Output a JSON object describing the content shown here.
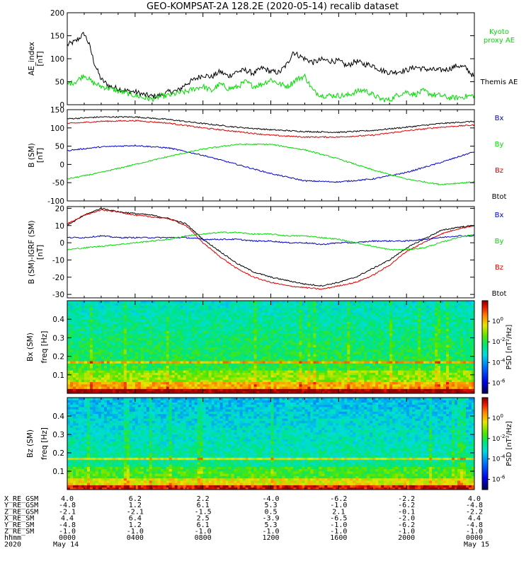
{
  "title": "GEO-KOMPSAT-2A 128.2E (2020-05-14) recalib dataset",
  "x_axis": {
    "range_hours": [
      0,
      24
    ],
    "major_tick_hours": [
      0,
      4,
      8,
      12,
      16,
      20,
      24
    ],
    "tick_labels": [
      "0000",
      "0400",
      "0800",
      "1200",
      "1600",
      "2000",
      "0000"
    ]
  },
  "ephemeris": {
    "rows": [
      {
        "label": "X_RE_GSM",
        "values": [
          "4.0",
          "6.2",
          "2.2",
          "-4.0",
          "-6.2",
          "-2.2",
          "4.0"
        ]
      },
      {
        "label": "Y_RE_GSM",
        "values": [
          "-4.8",
          "1.2",
          "6.1",
          "5.3",
          "-1.0",
          "-6.2",
          "-4.8"
        ]
      },
      {
        "label": "Z_RE_GSM",
        "values": [
          "-2.1",
          "-2.1",
          "-1.5",
          "0.5",
          "2.1",
          "-0.1",
          "-2.2"
        ]
      },
      {
        "label": "X_RE_SM",
        "values": [
          "4.4",
          "6.4",
          "2.5",
          "-3.9",
          "-6.5",
          "-2.0",
          "4.4"
        ]
      },
      {
        "label": "Y_RE_SM",
        "values": [
          "-4.8",
          "1.2",
          "6.1",
          "5.3",
          "-1.0",
          "-6.2",
          "-4.8"
        ]
      },
      {
        "label": "Z_RE_SM",
        "values": [
          "-1.0",
          "-1.0",
          "-1.0",
          "-1.0",
          "-1.0",
          "-1.0",
          "-1.0"
        ]
      },
      {
        "label": "hhmm",
        "values": [
          "0000",
          "0400",
          "0800",
          "1200",
          "1600",
          "2000",
          "0000"
        ]
      }
    ],
    "year_label": "2020",
    "date_start": "May 14",
    "date_end": "May 15"
  },
  "colors": {
    "black": "#000000",
    "red": "#dd0000",
    "green": "#00dd00",
    "blue": "#0000cc"
  },
  "chart_data": [
    {
      "type": "line",
      "ylabel": "AE_index",
      "yunit": "[nT]",
      "ylim": [
        0,
        200
      ],
      "yticks": [
        0,
        50,
        100,
        150,
        200
      ],
      "series": [
        {
          "name": "Themis AE",
          "color": "#000000",
          "x": [
            0,
            0.5,
            1.0,
            1.3,
            1.6,
            2.0,
            2.5,
            3.0,
            3.5,
            4.0,
            4.5,
            5.0,
            5.5,
            6.0,
            6.5,
            7.0,
            7.5,
            8.0,
            8.5,
            9.0,
            9.5,
            10.0,
            10.5,
            11.0,
            11.5,
            12.0,
            12.5,
            13.0,
            13.3,
            13.6,
            14.0,
            14.5,
            15.0,
            15.5,
            16.0,
            16.5,
            17.0,
            17.5,
            18.0,
            18.5,
            19.0,
            19.5,
            20.0,
            20.5,
            21.0,
            21.5,
            22.0,
            22.5,
            23.0,
            23.5,
            24.0
          ],
          "y": [
            130,
            138,
            155,
            130,
            90,
            55,
            40,
            35,
            30,
            28,
            22,
            18,
            20,
            28,
            30,
            45,
            55,
            65,
            60,
            72,
            62,
            72,
            75,
            68,
            80,
            72,
            70,
            90,
            115,
            108,
            100,
            92,
            98,
            95,
            95,
            84,
            95,
            88,
            86,
            75,
            70,
            72,
            75,
            82,
            78,
            76,
            75,
            78,
            85,
            80,
            60
          ]
        },
        {
          "name": "Kyoto proxy AE",
          "color": "#00dd00",
          "x": [
            0,
            0.5,
            1.0,
            1.5,
            2.0,
            2.5,
            3.0,
            3.5,
            4.0,
            4.5,
            5.0,
            5.5,
            6.0,
            6.5,
            7.0,
            7.5,
            8.0,
            8.5,
            9.0,
            9.5,
            10.0,
            10.5,
            11.0,
            11.5,
            12.0,
            12.5,
            13.0,
            13.5,
            14.0,
            14.5,
            15.0,
            15.5,
            16.0,
            16.5,
            17.0,
            17.5,
            18.0,
            18.5,
            19.0,
            19.5,
            20.0,
            20.5,
            21.0,
            21.5,
            22.0,
            22.5,
            23.0,
            23.5,
            24.0
          ],
          "y": [
            45,
            50,
            65,
            48,
            40,
            35,
            30,
            25,
            20,
            15,
            12,
            18,
            20,
            25,
            28,
            35,
            40,
            30,
            45,
            35,
            38,
            50,
            40,
            45,
            55,
            45,
            40,
            55,
            62,
            30,
            20,
            20,
            20,
            20,
            28,
            32,
            22,
            12,
            10,
            22,
            28,
            22,
            30,
            22,
            20,
            15,
            15,
            18,
            20
          ]
        }
      ],
      "legend": [
        {
          "text": "Kyoto",
          "color": "#00dd00"
        },
        {
          "text": "proxy AE",
          "color": "#00dd00"
        },
        {
          "text": "Themis AE",
          "color": "#000000"
        }
      ]
    },
    {
      "type": "line",
      "ylabel": "B (SM)",
      "yunit": "[nT]",
      "ylim": [
        -100,
        150
      ],
      "yticks": [
        -100,
        -50,
        0,
        50,
        100,
        150
      ],
      "series": [
        {
          "name": "Btot",
          "color": "#000000",
          "x": [
            0,
            2,
            4,
            6,
            8,
            10,
            12,
            14,
            16,
            18,
            20,
            22,
            24
          ],
          "y": [
            125,
            130,
            130,
            123,
            112,
            102,
            95,
            90,
            88,
            93,
            102,
            112,
            118
          ]
        },
        {
          "name": "Bz",
          "color": "#dd0000",
          "x": [
            0,
            2,
            4,
            6,
            8,
            10,
            12,
            14,
            16,
            18,
            20,
            22,
            24
          ],
          "y": [
            112,
            118,
            120,
            113,
            100,
            90,
            80,
            75,
            75,
            80,
            92,
            102,
            108
          ]
        },
        {
          "name": "Bx",
          "color": "#0000cc",
          "x": [
            0,
            2,
            4,
            6,
            8,
            10,
            12,
            14,
            16,
            18,
            20,
            22,
            24
          ],
          "y": [
            38,
            48,
            52,
            45,
            25,
            0,
            -25,
            -45,
            -48,
            -40,
            -22,
            5,
            35
          ]
        },
        {
          "name": "By",
          "color": "#00dd00",
          "x": [
            0,
            2,
            4,
            6,
            8,
            10,
            12,
            14,
            16,
            18,
            20,
            22,
            24
          ],
          "y": [
            -40,
            -22,
            0,
            22,
            42,
            55,
            55,
            40,
            15,
            -15,
            -40,
            -55,
            -48
          ]
        }
      ],
      "legend": [
        {
          "text": "Bx",
          "color": "#0000cc"
        },
        {
          "text": "By",
          "color": "#00dd00"
        },
        {
          "text": "Bz",
          "color": "#dd0000"
        },
        {
          "text": "Btot",
          "color": "#000000"
        }
      ]
    },
    {
      "type": "line",
      "ylabel": "B (SM)-IGRF (SM)",
      "yunit": "[nT]",
      "ylim": [
        -32,
        21
      ],
      "yticks": [
        -30,
        -20,
        -10,
        0,
        10,
        20
      ],
      "series": [
        {
          "name": "Btot",
          "color": "#000000",
          "x": [
            0,
            1,
            2,
            3,
            4,
            5,
            6,
            7,
            8,
            9,
            10,
            11,
            12,
            13,
            14,
            15,
            16,
            17,
            18,
            19,
            20,
            21,
            22,
            23,
            24
          ],
          "y": [
            10,
            16,
            20,
            18,
            17,
            16,
            14,
            11,
            2,
            -5,
            -12,
            -17,
            -20,
            -22,
            -24,
            -25,
            -23,
            -20,
            -15,
            -10,
            -3,
            2,
            7,
            9,
            10
          ]
        },
        {
          "name": "Bz",
          "color": "#dd0000",
          "x": [
            0,
            1,
            2,
            3,
            4,
            5,
            6,
            7,
            8,
            9,
            10,
            11,
            12,
            13,
            14,
            15,
            16,
            17,
            18,
            19,
            20,
            21,
            22,
            23,
            24
          ],
          "y": [
            11,
            16,
            19,
            18,
            16,
            15,
            14,
            10,
            0,
            -8,
            -15,
            -20,
            -23,
            -25,
            -26,
            -27,
            -25,
            -23,
            -19,
            -13,
            -5,
            0,
            5,
            8,
            10
          ]
        },
        {
          "name": "Bx",
          "color": "#0000cc",
          "x": [
            0,
            1,
            2,
            3,
            4,
            5,
            6,
            7,
            8,
            9,
            10,
            11,
            12,
            13,
            14,
            15,
            16,
            17,
            18,
            19,
            20,
            21,
            22,
            23,
            24
          ],
          "y": [
            3,
            3,
            4,
            3,
            3,
            3,
            3,
            3,
            2,
            2,
            2,
            1,
            1,
            0,
            0,
            -1,
            0,
            0,
            1,
            1,
            1,
            2,
            3,
            4,
            4
          ]
        },
        {
          "name": "By",
          "color": "#00dd00",
          "x": [
            0,
            1,
            2,
            3,
            4,
            5,
            6,
            7,
            8,
            9,
            10,
            11,
            12,
            13,
            14,
            15,
            16,
            17,
            18,
            19,
            20,
            21,
            22,
            23,
            24
          ],
          "y": [
            -4,
            -3,
            -2,
            -1,
            0,
            1,
            2,
            4,
            5,
            6,
            6,
            5,
            5,
            4,
            4,
            3,
            2,
            0,
            -2,
            -4,
            -4,
            -3,
            0,
            3,
            5
          ]
        }
      ],
      "legend": [
        {
          "text": "Bx",
          "color": "#0000cc"
        },
        {
          "text": "By",
          "color": "#00dd00"
        },
        {
          "text": "Bz",
          "color": "#dd0000"
        },
        {
          "text": "Btot",
          "color": "#000000"
        }
      ]
    },
    {
      "type": "heatmap",
      "ylabel": "Bx (SM)",
      "yunit2": "freq [Hz]",
      "ylim": [
        0,
        0.5
      ],
      "yticks": [
        0.1,
        0.2,
        0.3,
        0.4
      ],
      "line_freq": 0.165,
      "base_level": 0.62,
      "colorbar": {
        "label": "PSD [nT²/Hz]",
        "range_exp": [
          -7,
          2
        ],
        "ticks_exp": [
          0,
          -2,
          -4,
          -6
        ]
      }
    },
    {
      "type": "heatmap",
      "ylabel": "Bz (SM)",
      "yunit2": "freq [Hz]",
      "ylim": [
        0,
        0.5
      ],
      "yticks": [
        0.1,
        0.2,
        0.3,
        0.4
      ],
      "line_freq": 0.165,
      "base_level": 0.55,
      "colorbar": {
        "label": "PSD [nT²/Hz]",
        "range_exp": [
          -7,
          2
        ],
        "ticks_exp": [
          0,
          -2,
          -4,
          -6
        ]
      }
    }
  ]
}
